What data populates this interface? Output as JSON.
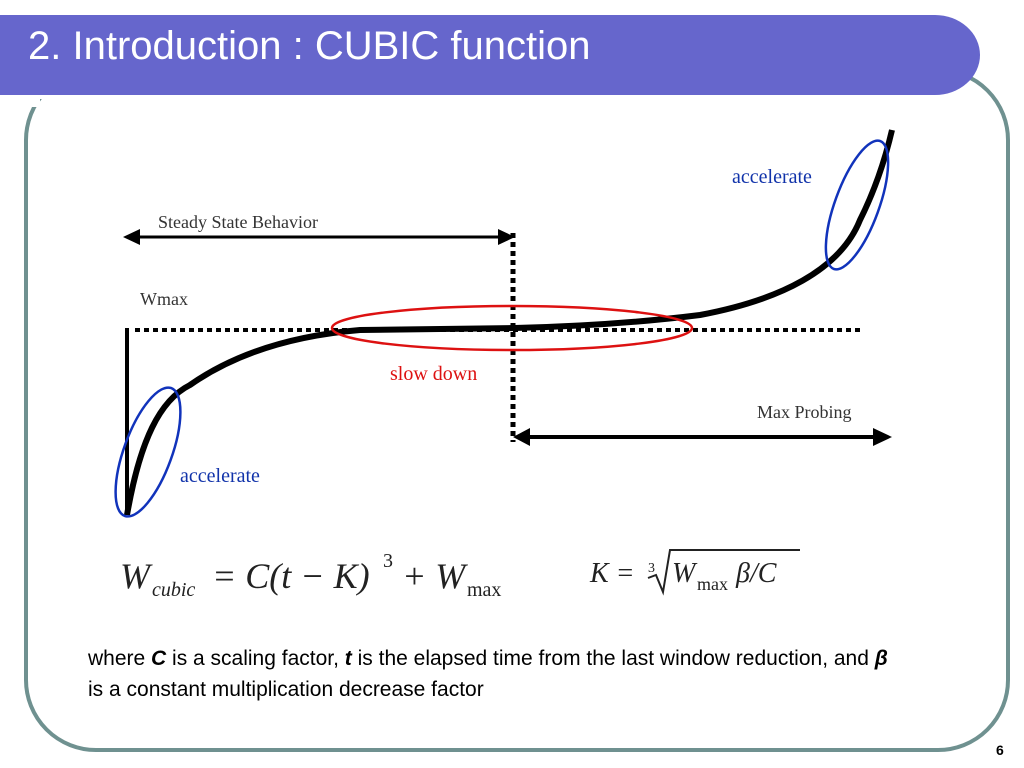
{
  "header": {
    "title": "2. Introduction : CUBIC function"
  },
  "diagram": {
    "steady_label": "Steady State Behavior",
    "wmax_label": "Wmax",
    "probing_label": "Max Probing",
    "accelerate_top": "accelerate",
    "slow_down": "slow down",
    "accelerate_bottom": "accelerate"
  },
  "formula_w": {
    "w": "W",
    "sub": "cubic",
    "mid": "= C(t − K)",
    "exp": "3",
    "plus": "+ W",
    "max": "max"
  },
  "formula_k": {
    "lhs": "K =",
    "root_index": "3",
    "w": "W",
    "max": "max",
    "rest": "β/C"
  },
  "body": {
    "parts": [
      "where ",
      "C",
      " is a scaling factor, ",
      "t",
      " is the elapsed time from the last window reduction, and ",
      "β",
      " is a constant multiplication decrease factor"
    ]
  },
  "footer": {
    "page": "6"
  }
}
